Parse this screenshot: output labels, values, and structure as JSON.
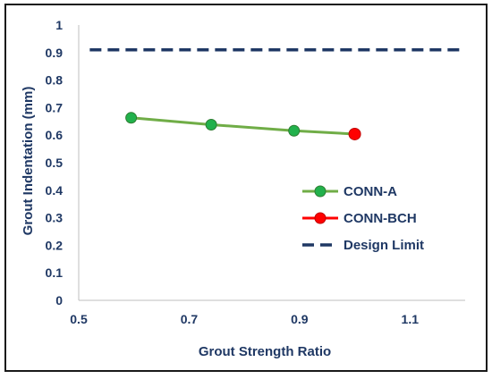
{
  "chart_data": {
    "type": "line",
    "title": "",
    "xlabel": "Grout Strength Ratio",
    "ylabel": "Grout Indentation (mm)",
    "xlim": [
      0.5,
      1.2
    ],
    "ylim": [
      0,
      1
    ],
    "x_ticks": [
      0.5,
      0.7,
      0.9,
      1.1
    ],
    "x_tick_labels": [
      "0.5",
      "0.7",
      "0.9",
      "1.1"
    ],
    "y_ticks": [
      0,
      0.1,
      0.2,
      0.3,
      0.4,
      0.5,
      0.6,
      0.7,
      0.8,
      0.9,
      1
    ],
    "y_tick_labels": [
      "0",
      "0.1",
      "0.2",
      "0.3",
      "0.4",
      "0.5",
      "0.6",
      "0.7",
      "0.8",
      "0.9",
      "1"
    ],
    "grid": false,
    "legend_position": "right",
    "series": [
      {
        "name": "CONN-A",
        "style": "line-marker",
        "color": "#70ad47",
        "marker_color": "#22b14c",
        "x": [
          0.595,
          0.74,
          0.89,
          1.0
        ],
        "y": [
          0.663,
          0.638,
          0.616,
          0.604
        ]
      },
      {
        "name": "CONN-BCH",
        "style": "marker",
        "color": "#ff0000",
        "marker_color": "#ff0000",
        "x": [
          1.0
        ],
        "y": [
          0.604
        ]
      },
      {
        "name": "Design Limit",
        "style": "dashed",
        "color": "#1f3864",
        "x": [
          0.52,
          1.2
        ],
        "y": [
          0.91,
          0.91
        ]
      }
    ]
  }
}
